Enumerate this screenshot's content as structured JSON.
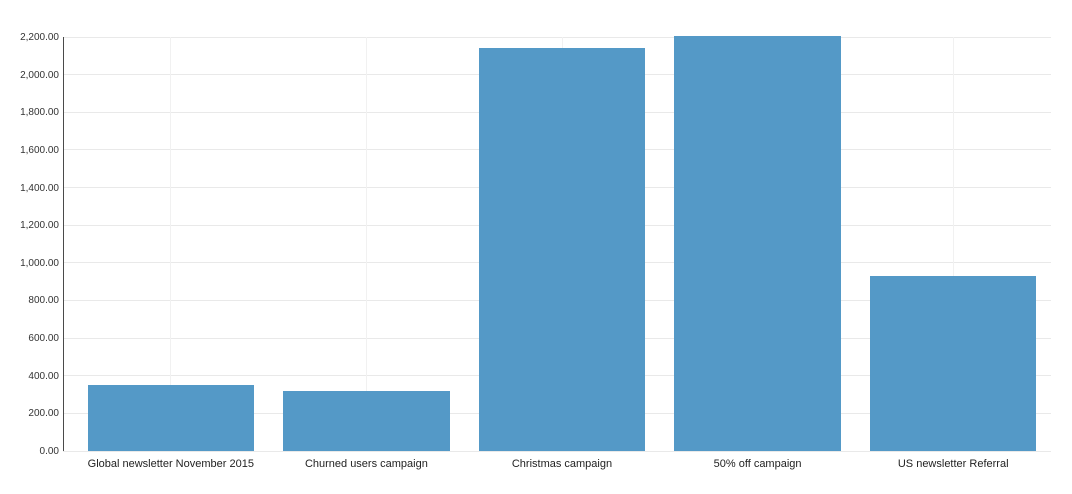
{
  "chart_data": {
    "type": "bar",
    "title": "",
    "subtitle": "",
    "xlabel": "",
    "ylabel": "",
    "categories": [
      "Global newsletter November 2015",
      "Churned users campaign",
      "Christmas campaign",
      "50% off campaign",
      "US newsletter Referral"
    ],
    "values": [
      351,
      317,
      2140,
      2205,
      930
    ],
    "ylim": [
      0,
      2200
    ],
    "ytick_step": 200,
    "ytick_labels": [
      "0.00",
      "200.00",
      "400.00",
      "600.00",
      "800.00",
      "1,000.00",
      "1,200.00",
      "1,400.00",
      "1,600.00",
      "1,800.00",
      "2,000.00",
      "2,200.00"
    ],
    "grid": true,
    "legend_visible": false,
    "colors": {
      "bar": "#5499c7",
      "grid_horizontal": "#e9e9e9",
      "grid_vertical": "#f1f1f1",
      "axis": "#4a4a4a",
      "tick_label": "#333333",
      "category_label": "#222222",
      "background": "#ffffff"
    }
  }
}
